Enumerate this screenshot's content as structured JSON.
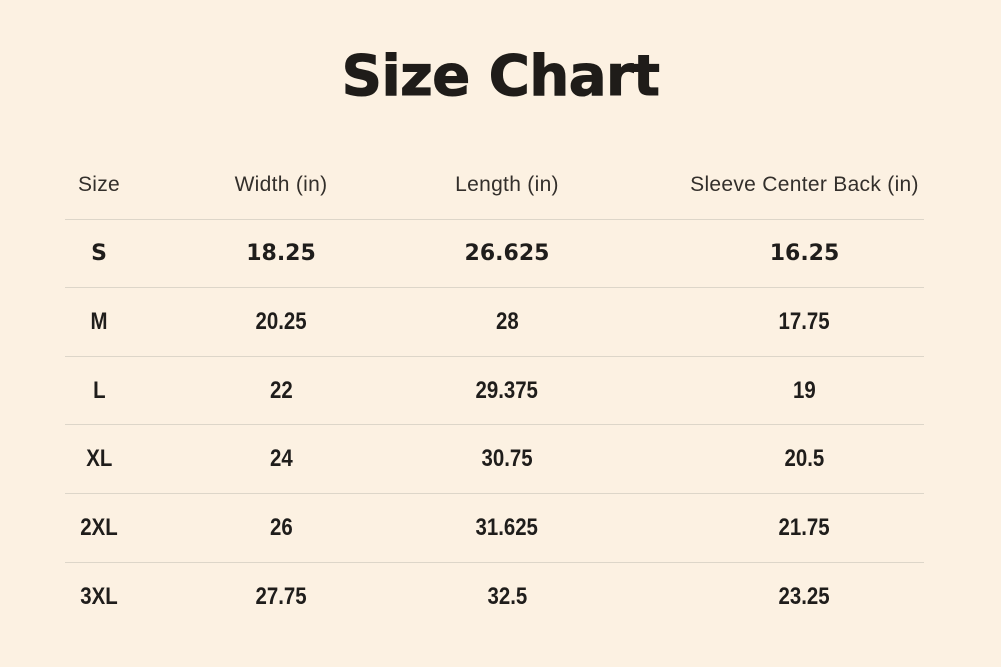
{
  "title": "Size Chart",
  "table": {
    "columns": [
      "Size",
      "Width (in)",
      "Length (in)",
      "Sleeve Center Back (in)"
    ],
    "rows": [
      {
        "size": "S",
        "width": "18.25",
        "length": "26.625",
        "sleeve": "16.25"
      },
      {
        "size": "M",
        "width": "20.25",
        "length": "28",
        "sleeve": "17.75"
      },
      {
        "size": "L",
        "width": "22",
        "length": "29.375",
        "sleeve": "19"
      },
      {
        "size": "XL",
        "width": "24",
        "length": "30.75",
        "sleeve": "20.5"
      },
      {
        "size": "2XL",
        "width": "26",
        "length": "31.625",
        "sleeve": "21.75"
      },
      {
        "size": "3XL",
        "width": "27.75",
        "length": "32.5",
        "sleeve": "23.25"
      }
    ]
  },
  "chart_data": {
    "type": "table",
    "title": "Size Chart",
    "columns": [
      "Size",
      "Width (in)",
      "Length (in)",
      "Sleeve Center Back (in)"
    ],
    "rows": [
      [
        "S",
        18.25,
        26.625,
        16.25
      ],
      [
        "M",
        20.25,
        28,
        17.75
      ],
      [
        "L",
        22,
        29.375,
        19
      ],
      [
        "XL",
        24,
        30.75,
        20.5
      ],
      [
        "2XL",
        26,
        31.625,
        21.75
      ],
      [
        "3XL",
        27.75,
        32.5,
        23.25
      ]
    ]
  },
  "colors": {
    "background": "#fcf1e2",
    "divider": "#ddd6c9",
    "title_text": "#1f1c19",
    "header_text": "#332f2b",
    "data_text": "#1f1d1b"
  }
}
